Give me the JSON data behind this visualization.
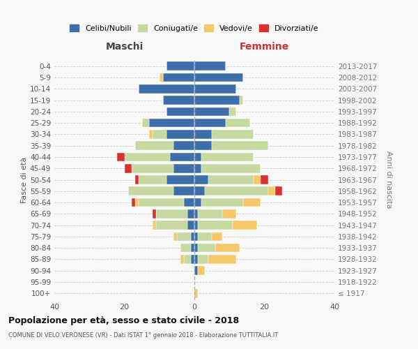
{
  "age_groups": [
    "100+",
    "95-99",
    "90-94",
    "85-89",
    "80-84",
    "75-79",
    "70-74",
    "65-69",
    "60-64",
    "55-59",
    "50-54",
    "45-49",
    "40-44",
    "35-39",
    "30-34",
    "25-29",
    "20-24",
    "15-19",
    "10-14",
    "5-9",
    "0-4"
  ],
  "birth_years": [
    "≤ 1917",
    "1918-1922",
    "1923-1927",
    "1928-1932",
    "1933-1937",
    "1938-1942",
    "1943-1947",
    "1948-1952",
    "1953-1957",
    "1958-1962",
    "1963-1967",
    "1968-1972",
    "1973-1977",
    "1978-1982",
    "1983-1987",
    "1988-1992",
    "1993-1997",
    "1998-2002",
    "2003-2007",
    "2008-2012",
    "2013-2017"
  ],
  "colors": {
    "celibe": "#3d6ea8",
    "coniugato": "#c5d9a0",
    "vedovo": "#f5c96a",
    "divorziato": "#d93030"
  },
  "maschi": {
    "celibe": [
      0,
      0,
      0,
      1,
      1,
      1,
      2,
      2,
      3,
      6,
      8,
      6,
      7,
      6,
      8,
      13,
      8,
      9,
      16,
      9,
      8
    ],
    "coniugato": [
      0,
      0,
      0,
      2,
      3,
      4,
      9,
      9,
      13,
      13,
      8,
      12,
      13,
      11,
      4,
      2,
      0,
      0,
      0,
      0,
      0
    ],
    "vedovo": [
      0,
      0,
      0,
      1,
      0,
      1,
      1,
      0,
      1,
      0,
      0,
      0,
      0,
      0,
      1,
      0,
      0,
      0,
      0,
      1,
      0
    ],
    "divorziato": [
      0,
      0,
      0,
      0,
      0,
      0,
      0,
      1,
      1,
      0,
      1,
      2,
      2,
      0,
      0,
      0,
      0,
      0,
      0,
      0,
      0
    ]
  },
  "femmine": {
    "celibe": [
      0,
      0,
      1,
      1,
      1,
      1,
      1,
      1,
      2,
      3,
      4,
      2,
      2,
      5,
      5,
      9,
      10,
      13,
      12,
      14,
      9
    ],
    "coniugato": [
      0,
      0,
      0,
      3,
      5,
      4,
      10,
      7,
      12,
      18,
      13,
      17,
      15,
      16,
      12,
      7,
      2,
      1,
      0,
      0,
      0
    ],
    "vedovo": [
      1,
      0,
      2,
      8,
      7,
      3,
      7,
      4,
      5,
      2,
      2,
      0,
      0,
      0,
      0,
      0,
      0,
      0,
      0,
      0,
      0
    ],
    "divorziato": [
      0,
      0,
      0,
      0,
      0,
      0,
      0,
      0,
      0,
      2,
      2,
      0,
      0,
      0,
      0,
      0,
      0,
      0,
      0,
      0,
      0
    ]
  },
  "title": "Popolazione per età, sesso e stato civile - 2018",
  "subtitle": "COMUNE DI VELO VERONESE (VR) - Dati ISTAT 1° gennaio 2018 - Elaborazione TUTTITALIA.IT",
  "xlabel_left": "Maschi",
  "xlabel_right": "Femmine",
  "ylabel_left": "Fasce di età",
  "ylabel_right": "Anni di nascita",
  "xlim": 40,
  "background_color": "#f9f9f9",
  "grid_color": "#cccccc",
  "legend_labels": [
    "Celibi/Nubili",
    "Coniugati/e",
    "Vedovi/e",
    "Divorziati/e"
  ]
}
